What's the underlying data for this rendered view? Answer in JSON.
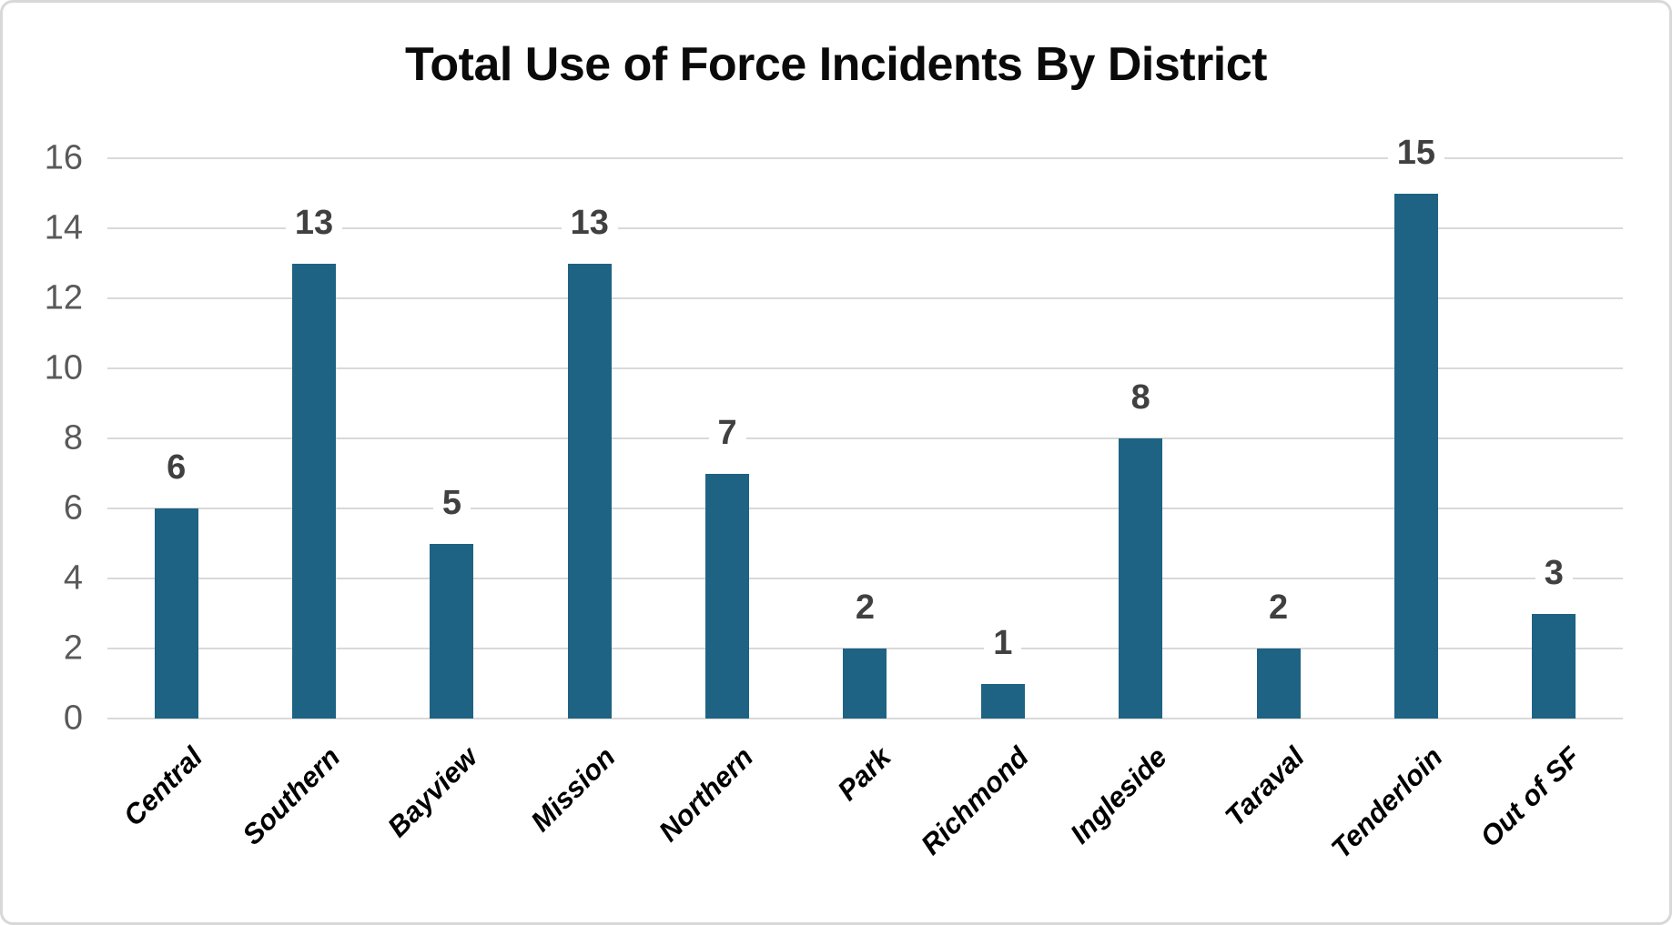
{
  "chart_data": {
    "type": "bar",
    "title": "Total Use of Force Incidents By District",
    "categories": [
      "Central",
      "Southern",
      "Bayview",
      "Mission",
      "Northern",
      "Park",
      "Richmond",
      "Ingleside",
      "Taraval",
      "Tenderloin",
      "Out of SF"
    ],
    "values": [
      6,
      13,
      5,
      13,
      7,
      2,
      1,
      8,
      2,
      15,
      3
    ],
    "xlabel": "",
    "ylabel": "",
    "ylim": [
      0,
      16
    ],
    "yticks": [
      0,
      2,
      4,
      6,
      8,
      10,
      12,
      14,
      16
    ],
    "grid": true,
    "legend": false,
    "data_labels": true,
    "colors": {
      "bar": "#1e6384",
      "gridline": "#d9d9d9",
      "y_tick_label": "#595959",
      "data_label": "#404040",
      "category_label": "#000000",
      "title": "#0a0a0a",
      "background": "#ffffff",
      "chart_border": "#d8d8d8"
    }
  }
}
